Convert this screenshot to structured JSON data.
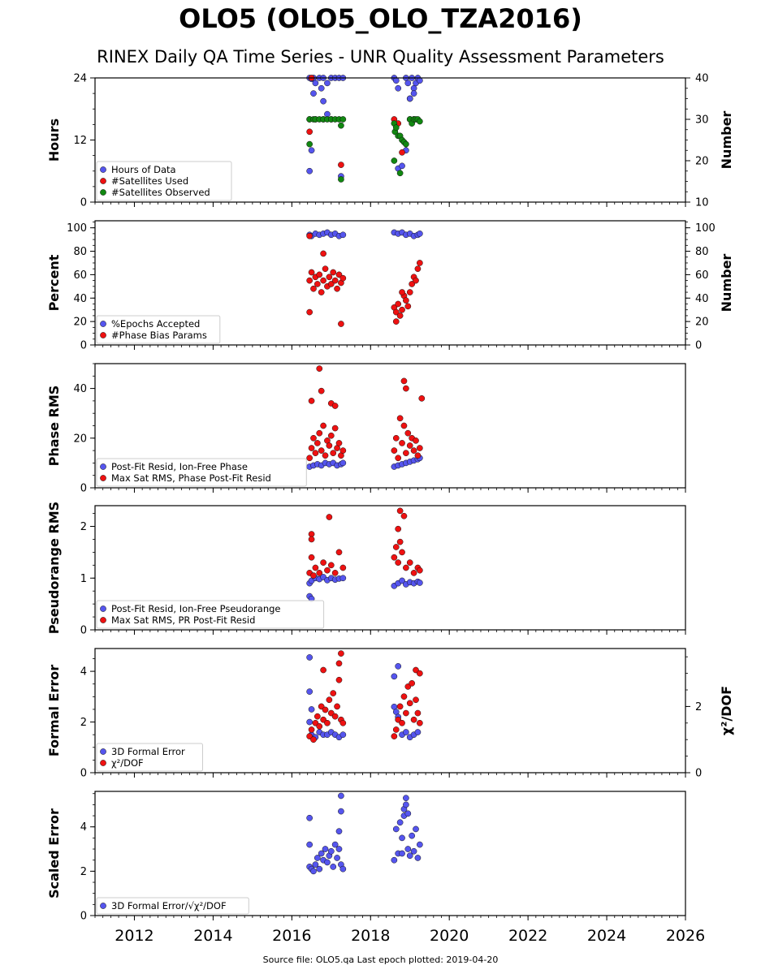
{
  "header": {
    "title": "OLO5 (OLO5_OLO_TZA2016)",
    "subtitle": "RINEX Daily QA Time Series - UNR Quality Assessment Parameters"
  },
  "footer": {
    "text": "Source file: OLO5.qa Last epoch plotted: 2019-04-20"
  },
  "colors": {
    "blue": "#5555ee",
    "red": "#ee1111",
    "green": "#118811",
    "edge": "#111111"
  },
  "chart_data": [
    {
      "type": "scatter",
      "ylabel": "Hours",
      "ylabel_right": "Number",
      "ylim": [
        0,
        24
      ],
      "yticks": [
        0,
        12,
        24
      ],
      "ylim_right": [
        10,
        40
      ],
      "yticks_right": [
        10,
        20,
        30,
        40
      ],
      "xlim": [
        2011.0,
        2026.0
      ],
      "xticks": [
        2012,
        2014,
        2016,
        2018,
        2020,
        2022,
        2024,
        2026
      ],
      "legend": "lower-left",
      "series": [
        {
          "name": "Hours of Data",
          "color": "blue",
          "axis": "left",
          "x": [
            2016.45,
            2016.5,
            2016.55,
            2016.6,
            2016.7,
            2016.75,
            2016.8,
            2016.9,
            2017.0,
            2017.1,
            2017.2,
            2017.3,
            2016.55,
            2016.8,
            2017.25,
            2016.45,
            2016.5,
            2016.9,
            2018.6,
            2018.65,
            2018.7,
            2018.9,
            2018.95,
            2019.0,
            2019.05,
            2019.1,
            2019.15,
            2019.2,
            2019.25,
            2019.1,
            2018.7,
            2018.8,
            2018.9,
            2019.0
          ],
          "y": [
            24,
            23.8,
            24,
            23,
            24,
            22,
            24,
            23,
            24,
            24,
            24,
            24,
            21,
            19.5,
            5,
            6,
            10,
            17,
            24,
            23.5,
            22,
            24,
            23,
            20,
            24,
            22,
            23,
            24,
            23.5,
            21,
            6.5,
            7,
            10,
            20
          ]
        },
        {
          "name": "#Satellites Used",
          "color": "red",
          "axis": "right",
          "x": [
            2016.45,
            2016.5,
            2016.6,
            2016.8,
            2017.0,
            2017.25,
            2016.45,
            2018.6,
            2018.7,
            2018.8,
            2019.0,
            2019.1
          ],
          "y": [
            27,
            40,
            30,
            30,
            30,
            19,
            30,
            30,
            29,
            22,
            30,
            30
          ]
        },
        {
          "name": "#Satellites Observed",
          "color": "green",
          "axis": "right",
          "x": [
            2016.45,
            2016.55,
            2016.6,
            2016.7,
            2016.8,
            2016.9,
            2017.0,
            2017.1,
            2017.2,
            2017.3,
            2016.45,
            2017.25,
            2017.25,
            2018.6,
            2018.62,
            2018.65,
            2018.7,
            2018.75,
            2018.8,
            2018.85,
            2018.9,
            2019.0,
            2019.05,
            2019.1,
            2019.15,
            2019.2,
            2019.25,
            2018.6,
            2018.75
          ],
          "y": [
            30,
            30,
            30,
            30,
            30,
            30,
            30,
            30,
            30,
            30,
            24,
            28.5,
            15.5,
            29,
            27,
            28,
            26,
            26,
            25,
            24.5,
            24,
            30,
            29,
            30,
            30,
            30,
            29.5,
            20,
            17
          ]
        }
      ]
    },
    {
      "type": "scatter",
      "ylabel": "Percent",
      "ylabel_right": "Number",
      "ylim": [
        0,
        106
      ],
      "yticks": [
        0,
        20,
        40,
        60,
        80,
        100
      ],
      "ylim_right": [
        0,
        106
      ],
      "yticks_right": [
        0,
        20,
        40,
        60,
        80,
        100
      ],
      "xlim": [
        2011.0,
        2026.0
      ],
      "legend": "lower-left",
      "series": [
        {
          "name": "%Epochs Accepted",
          "color": "blue",
          "axis": "left",
          "x": [
            2016.45,
            2016.5,
            2016.6,
            2016.7,
            2016.8,
            2016.9,
            2017.0,
            2017.1,
            2017.2,
            2017.3,
            2018.6,
            2018.7,
            2018.8,
            2018.9,
            2019.0,
            2019.1,
            2019.2,
            2019.25
          ],
          "y": [
            94,
            93,
            95,
            94,
            95,
            96,
            94,
            95,
            93,
            94,
            96,
            95,
            96,
            94,
            95,
            93,
            94,
            95
          ]
        },
        {
          "name": "#Phase Bias Params",
          "color": "red",
          "axis": "right",
          "x": [
            2016.45,
            2016.5,
            2016.55,
            2016.6,
            2016.65,
            2016.7,
            2016.75,
            2016.8,
            2016.85,
            2016.9,
            2016.95,
            2017.0,
            2017.05,
            2017.1,
            2017.15,
            2017.2,
            2017.25,
            2017.3,
            2016.45,
            2016.8,
            2017.25,
            2016.45,
            2018.6,
            2018.65,
            2018.7,
            2018.75,
            2018.8,
            2018.85,
            2018.9,
            2018.95,
            2019.0,
            2019.05,
            2019.1,
            2019.15,
            2019.2,
            2019.25,
            2018.65,
            2018.8
          ],
          "y": [
            55,
            62,
            48,
            58,
            52,
            60,
            45,
            55,
            65,
            50,
            58,
            52,
            62,
            55,
            48,
            60,
            53,
            57,
            28,
            78,
            18,
            93,
            32,
            28,
            35,
            25,
            30,
            42,
            38,
            33,
            45,
            52,
            58,
            55,
            65,
            70,
            20,
            45
          ]
        }
      ]
    },
    {
      "type": "scatter",
      "ylabel": "Phase RMS",
      "ylim": [
        0,
        50
      ],
      "yticks": [
        0,
        20,
        40
      ],
      "xlim": [
        2011.0,
        2026.0
      ],
      "legend": "lower-left",
      "series": [
        {
          "name": "Post-Fit Resid, Ion-Free Phase",
          "color": "blue",
          "axis": "left",
          "x": [
            2016.45,
            2016.55,
            2016.65,
            2016.75,
            2016.85,
            2016.95,
            2017.05,
            2017.15,
            2017.25,
            2017.3,
            2018.6,
            2018.7,
            2018.8,
            2018.9,
            2019.0,
            2019.1,
            2019.2,
            2019.25
          ],
          "y": [
            8.5,
            9,
            9.5,
            9,
            10,
            9.5,
            10,
            9,
            9.5,
            10,
            8.5,
            9,
            9.5,
            10,
            10.5,
            11,
            11.5,
            12
          ]
        },
        {
          "name": "Max Sat RMS, Phase Post-Fit Resid",
          "color": "red",
          "axis": "left",
          "x": [
            2016.45,
            2016.5,
            2016.55,
            2016.6,
            2016.65,
            2016.7,
            2016.75,
            2016.8,
            2016.85,
            2016.9,
            2016.95,
            2017.0,
            2017.05,
            2017.1,
            2017.15,
            2017.2,
            2017.25,
            2017.3,
            2016.5,
            2016.7,
            2016.75,
            2017.0,
            2017.1,
            2018.6,
            2018.65,
            2018.7,
            2018.75,
            2018.8,
            2018.85,
            2018.9,
            2018.95,
            2019.0,
            2019.05,
            2019.1,
            2019.15,
            2019.2,
            2019.25,
            2018.85,
            2018.9,
            2019.3
          ],
          "y": [
            12,
            16,
            20,
            14,
            18,
            22,
            15,
            25,
            13,
            19,
            17,
            21,
            14,
            24,
            16,
            18,
            13,
            15,
            35,
            48,
            39,
            34,
            33,
            15,
            20,
            12,
            28,
            18,
            25,
            14,
            22,
            17,
            20,
            15,
            19,
            13,
            16,
            43,
            40,
            36
          ]
        }
      ]
    },
    {
      "type": "scatter",
      "ylabel": "Pseudorange RMS",
      "ylim": [
        0,
        2.4
      ],
      "yticks": [
        0,
        1,
        2
      ],
      "xlim": [
        2011.0,
        2026.0
      ],
      "legend": "lower-left",
      "series": [
        {
          "name": "Post-Fit Resid, Ion-Free Pseudorange",
          "color": "blue",
          "axis": "left",
          "x": [
            2016.45,
            2016.5,
            2016.6,
            2016.7,
            2016.8,
            2016.9,
            2017.0,
            2017.1,
            2017.2,
            2017.3,
            2016.45,
            2016.5,
            2018.6,
            2018.7,
            2018.8,
            2018.9,
            2019.0,
            2019.1,
            2019.2,
            2019.25
          ],
          "y": [
            0.9,
            0.95,
            1.0,
            0.98,
            1.02,
            0.96,
            1.0,
            0.97,
            0.99,
            1.0,
            0.65,
            0.6,
            0.85,
            0.9,
            0.95,
            0.88,
            0.92,
            0.9,
            0.93,
            0.91
          ]
        },
        {
          "name": "Max Sat RMS, PR Post-Fit Resid",
          "color": "red",
          "axis": "left",
          "x": [
            2016.45,
            2016.5,
            2016.55,
            2016.6,
            2016.7,
            2016.8,
            2016.9,
            2017.0,
            2017.1,
            2017.2,
            2017.3,
            2016.5,
            2016.5,
            2016.95,
            2018.6,
            2018.65,
            2018.7,
            2018.75,
            2018.8,
            2018.9,
            2019.0,
            2019.1,
            2019.2,
            2019.25,
            2018.75,
            2018.85,
            2018.7
          ],
          "y": [
            1.1,
            1.4,
            1.05,
            1.2,
            1.1,
            1.3,
            1.15,
            1.25,
            1.1,
            1.5,
            1.2,
            1.85,
            1.75,
            2.18,
            1.4,
            1.6,
            1.3,
            1.7,
            1.5,
            1.2,
            1.3,
            1.1,
            1.2,
            1.15,
            2.3,
            2.2,
            1.95
          ]
        }
      ]
    },
    {
      "type": "scatter",
      "ylabel": "Formal Error",
      "ylabel_right": "χ²/DOF",
      "ylim": [
        0,
        4.9
      ],
      "yticks": [
        0,
        2,
        4
      ],
      "ylim_right": [
        0,
        3.75
      ],
      "yticks_right": [
        0,
        2
      ],
      "xlim": [
        2011.0,
        2026.0
      ],
      "legend": "lower-left",
      "series": [
        {
          "name": "3D Formal Error",
          "color": "blue",
          "axis": "left",
          "x": [
            2016.45,
            2016.5,
            2016.6,
            2016.7,
            2016.8,
            2016.9,
            2017.0,
            2017.1,
            2017.2,
            2017.3,
            2016.45,
            2016.45,
            2016.5,
            2018.6,
            2018.65,
            2018.7,
            2018.8,
            2018.9,
            2019.0,
            2019.1,
            2019.2,
            2018.6,
            2018.7
          ],
          "y": [
            2.0,
            1.5,
            1.4,
            1.6,
            1.5,
            1.5,
            1.6,
            1.5,
            1.4,
            1.5,
            4.55,
            3.2,
            2.5,
            2.6,
            2.4,
            2.2,
            1.5,
            1.6,
            1.4,
            1.5,
            1.6,
            3.8,
            4.2
          ]
        },
        {
          "name": "χ²/DOF",
          "color": "red",
          "axis": "right",
          "x": [
            2016.45,
            2016.5,
            2016.55,
            2016.6,
            2016.65,
            2016.7,
            2016.75,
            2016.8,
            2016.85,
            2016.9,
            2016.95,
            2017.0,
            2017.05,
            2017.1,
            2017.15,
            2017.2,
            2017.25,
            2017.3,
            2016.8,
            2017.2,
            2017.25,
            2018.6,
            2018.65,
            2018.7,
            2018.75,
            2018.8,
            2018.85,
            2018.9,
            2018.95,
            2019.0,
            2019.05,
            2019.1,
            2019.15,
            2019.2,
            2019.25,
            2019.15,
            2019.25
          ],
          "y": [
            1.1,
            1.3,
            1.0,
            1.5,
            1.7,
            1.4,
            2.0,
            1.6,
            1.9,
            1.5,
            2.2,
            1.8,
            2.4,
            1.7,
            2.0,
            2.8,
            1.6,
            1.5,
            3.1,
            3.3,
            3.6,
            1.1,
            1.3,
            1.6,
            2.0,
            1.5,
            2.3,
            1.8,
            2.6,
            2.1,
            2.7,
            1.6,
            2.2,
            1.8,
            1.5,
            3.1,
            3.0
          ]
        }
      ]
    },
    {
      "type": "scatter",
      "ylabel": "Scaled Error",
      "ylim": [
        0,
        5.6
      ],
      "yticks": [
        0,
        2,
        4
      ],
      "xlim": [
        2011.0,
        2026.0
      ],
      "legend": "lower-left",
      "series": [
        {
          "name": "3D Formal Error/√χ²/DOF",
          "color": "blue",
          "axis": "left",
          "x": [
            2016.45,
            2016.5,
            2016.55,
            2016.6,
            2016.65,
            2016.7,
            2016.75,
            2016.8,
            2016.85,
            2016.9,
            2016.95,
            2017.0,
            2017.05,
            2017.1,
            2017.15,
            2017.2,
            2017.25,
            2017.3,
            2016.45,
            2016.45,
            2017.25,
            2017.25,
            2017.2,
            2018.6,
            2018.65,
            2018.7,
            2018.75,
            2018.8,
            2018.85,
            2018.9,
            2018.95,
            2019.0,
            2019.05,
            2019.1,
            2019.15,
            2019.2,
            2019.25,
            2018.85,
            2018.9,
            2018.95,
            2018.8
          ],
          "y": [
            2.2,
            2.1,
            2.0,
            2.3,
            2.6,
            2.1,
            2.8,
            2.5,
            3.0,
            2.4,
            2.7,
            2.9,
            2.2,
            3.2,
            2.6,
            3.8,
            2.3,
            2.1,
            4.4,
            3.2,
            5.4,
            4.7,
            3.0,
            2.5,
            3.9,
            2.8,
            4.2,
            3.5,
            4.8,
            5.3,
            3.0,
            2.7,
            3.6,
            2.9,
            3.9,
            2.6,
            3.2,
            4.5,
            5.0,
            4.6,
            2.8
          ]
        }
      ]
    }
  ]
}
